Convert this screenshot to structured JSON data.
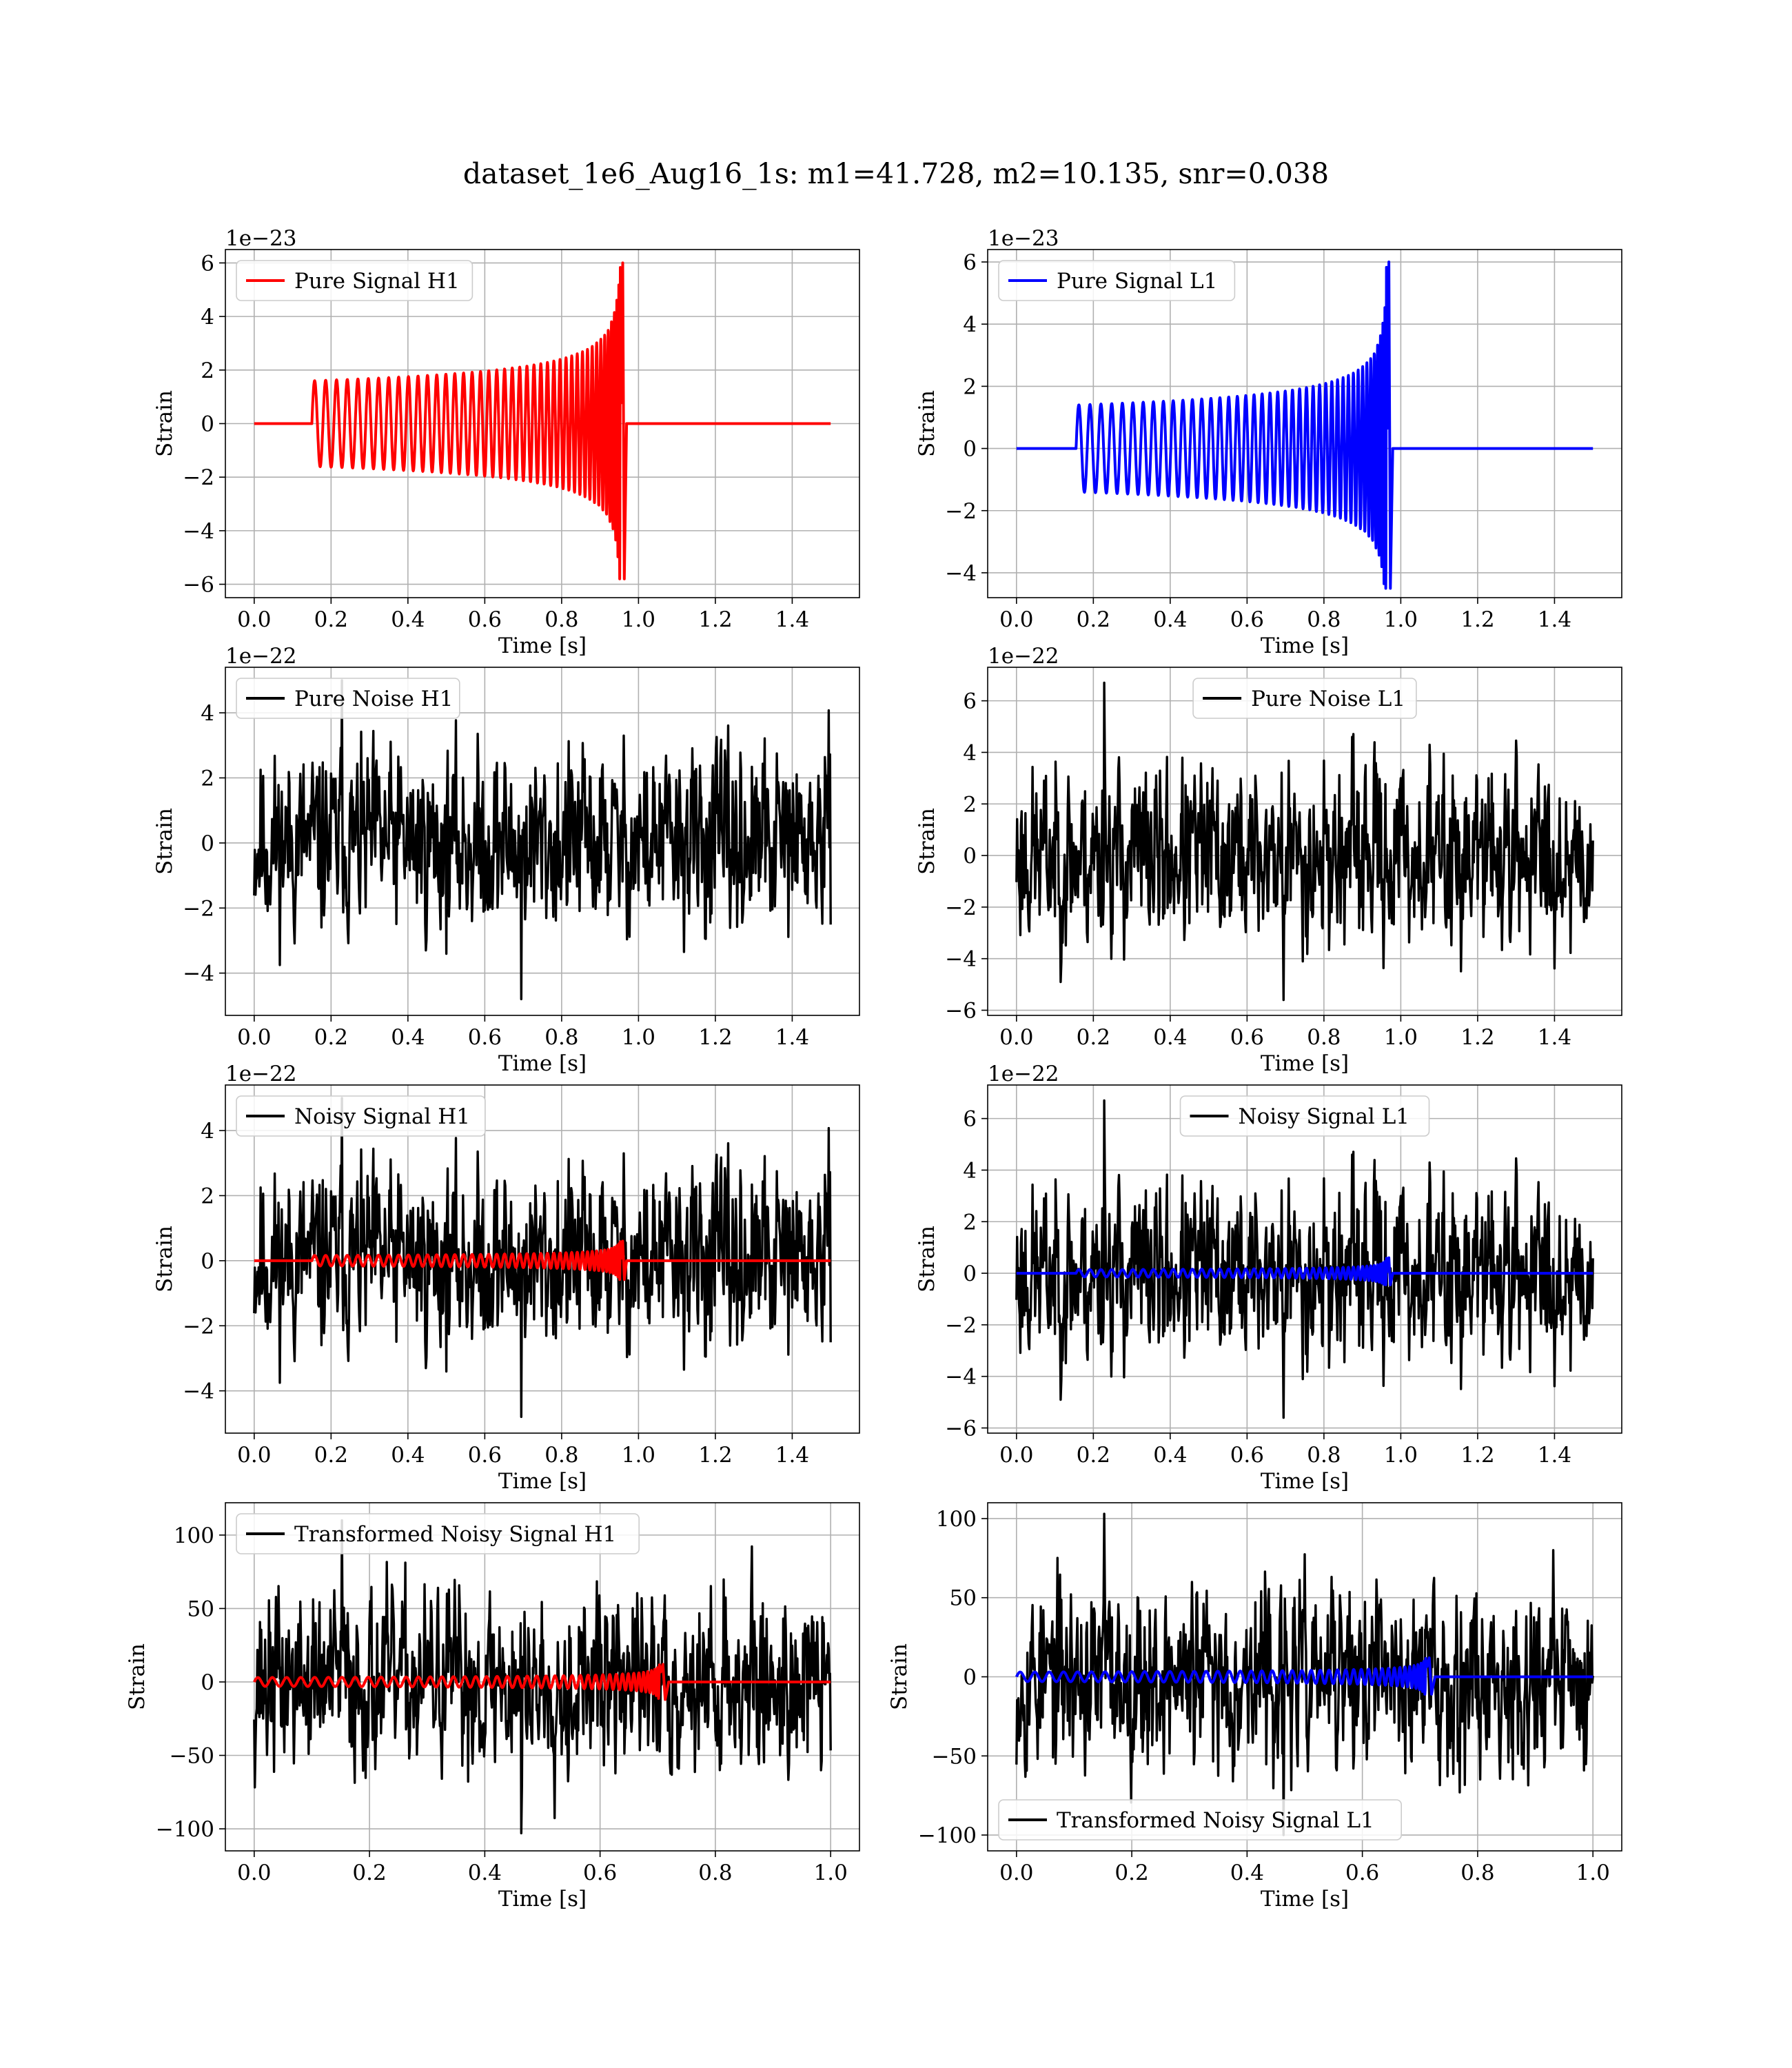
{
  "figure": {
    "title": "dataset_1e6_Aug16_1s: m1=41.728, m2=10.135, snr=0.038"
  },
  "colors": {
    "h1_signal": "#ff0000",
    "l1_signal": "#0000ff",
    "noise": "#000000",
    "grid": "#b0b0b0"
  },
  "chart_data": [
    {
      "type": "line",
      "panel": "pure-signal-h1",
      "offset_label": "1e−23",
      "xlabel": "Time [s]",
      "ylabel": "Strain",
      "xlim": [
        -0.075,
        1.575
      ],
      "ylim": [
        -6.5,
        6.5
      ],
      "xticks": [
        0.0,
        0.2,
        0.4,
        0.6,
        0.8,
        1.0,
        1.2,
        1.4
      ],
      "xtick_labels": [
        "0.0",
        "0.2",
        "0.4",
        "0.6",
        "0.8",
        "1.0",
        "1.2",
        "1.4"
      ],
      "yticks": [
        -6,
        -4,
        -2,
        0,
        2,
        4,
        6
      ],
      "ytick_labels": [
        "−6",
        "−4",
        "−2",
        "0",
        "2",
        "4",
        "6"
      ],
      "grid": true,
      "legend_position": "upper left",
      "series": [
        {
          "name": "Pure Signal H1",
          "color": "#ff0000",
          "kind": "chirp",
          "t_start": 0.15,
          "t_merge": 0.955,
          "t_end": 1.5,
          "amp_start": 1.6,
          "amp_peak": 6.0,
          "amp_neg_peak": -5.8
        }
      ]
    },
    {
      "type": "line",
      "panel": "pure-signal-l1",
      "offset_label": "1e−23",
      "xlabel": "Time [s]",
      "ylabel": "Strain",
      "xlim": [
        -0.075,
        1.575
      ],
      "ylim": [
        -4.8,
        6.4
      ],
      "xticks": [
        0.0,
        0.2,
        0.4,
        0.6,
        0.8,
        1.0,
        1.2,
        1.4
      ],
      "xtick_labels": [
        "0.0",
        "0.2",
        "0.4",
        "0.6",
        "0.8",
        "1.0",
        "1.2",
        "1.4"
      ],
      "yticks": [
        -4,
        -2,
        0,
        2,
        4,
        6
      ],
      "ytick_labels": [
        "−4",
        "−2",
        "0",
        "2",
        "4",
        "6"
      ],
      "grid": true,
      "legend_position": "upper left",
      "series": [
        {
          "name": "Pure Signal L1",
          "color": "#0000ff",
          "kind": "chirp",
          "t_start": 0.155,
          "t_merge": 0.965,
          "t_end": 1.5,
          "amp_start": 1.4,
          "amp_peak": 6.0,
          "amp_neg_peak": -4.5
        }
      ]
    },
    {
      "type": "line",
      "panel": "pure-noise-h1",
      "offset_label": "1e−22",
      "xlabel": "Time [s]",
      "ylabel": "Strain",
      "xlim": [
        -0.075,
        1.575
      ],
      "ylim": [
        -5.3,
        5.4
      ],
      "xticks": [
        0.0,
        0.2,
        0.4,
        0.6,
        0.8,
        1.0,
        1.2,
        1.4
      ],
      "xtick_labels": [
        "0.0",
        "0.2",
        "0.4",
        "0.6",
        "0.8",
        "1.0",
        "1.2",
        "1.4"
      ],
      "yticks": [
        -4,
        -2,
        0,
        2,
        4
      ],
      "ytick_labels": [
        "−4",
        "−2",
        "0",
        "2",
        "4"
      ],
      "grid": true,
      "legend_position": "upper left",
      "series": [
        {
          "name": "Pure Noise H1",
          "color": "#000000",
          "kind": "noise",
          "t_start": 0.0,
          "t_end": 1.5,
          "amp_min": -4.8,
          "amp_max": 5.0,
          "seed": 11
        }
      ]
    },
    {
      "type": "line",
      "panel": "pure-noise-l1",
      "offset_label": "1e−22",
      "xlabel": "Time [s]",
      "ylabel": "Strain",
      "xlim": [
        -0.075,
        1.575
      ],
      "ylim": [
        -6.2,
        7.3
      ],
      "xticks": [
        0.0,
        0.2,
        0.4,
        0.6,
        0.8,
        1.0,
        1.2,
        1.4
      ],
      "xtick_labels": [
        "0.0",
        "0.2",
        "0.4",
        "0.6",
        "0.8",
        "1.0",
        "1.2",
        "1.4"
      ],
      "yticks": [
        -6,
        -4,
        -2,
        0,
        2,
        4,
        6
      ],
      "ytick_labels": [
        "−6",
        "−4",
        "−2",
        "0",
        "2",
        "4",
        "6"
      ],
      "grid": true,
      "legend_position": "upper center",
      "series": [
        {
          "name": "Pure Noise L1",
          "color": "#000000",
          "kind": "noise",
          "t_start": 0.0,
          "t_end": 1.5,
          "amp_min": -5.6,
          "amp_max": 6.7,
          "seed": 23
        }
      ]
    },
    {
      "type": "line",
      "panel": "noisy-signal-h1",
      "offset_label": "1e−22",
      "xlabel": "Time [s]",
      "ylabel": "Strain",
      "xlim": [
        -0.075,
        1.575
      ],
      "ylim": [
        -5.3,
        5.4
      ],
      "xticks": [
        0.0,
        0.2,
        0.4,
        0.6,
        0.8,
        1.0,
        1.2,
        1.4
      ],
      "xtick_labels": [
        "0.0",
        "0.2",
        "0.4",
        "0.6",
        "0.8",
        "1.0",
        "1.2",
        "1.4"
      ],
      "yticks": [
        -4,
        -2,
        0,
        2,
        4
      ],
      "ytick_labels": [
        "−4",
        "−2",
        "0",
        "2",
        "4"
      ],
      "grid": true,
      "legend_position": "upper left",
      "series": [
        {
          "name": "Noisy Signal H1",
          "color": "#000000",
          "kind": "noise",
          "t_start": 0.0,
          "t_end": 1.5,
          "amp_min": -4.8,
          "amp_max": 5.0,
          "seed": 11
        },
        {
          "name": "",
          "color": "#ff0000",
          "kind": "chirp",
          "t_start": 0.15,
          "t_merge": 0.955,
          "t_end": 1.5,
          "amp_start": 0.16,
          "amp_peak": 0.6,
          "amp_neg_peak": -0.58
        }
      ]
    },
    {
      "type": "line",
      "panel": "noisy-signal-l1",
      "offset_label": "1e−22",
      "xlabel": "Time [s]",
      "ylabel": "Strain",
      "xlim": [
        -0.075,
        1.575
      ],
      "ylim": [
        -6.2,
        7.3
      ],
      "xticks": [
        0.0,
        0.2,
        0.4,
        0.6,
        0.8,
        1.0,
        1.2,
        1.4
      ],
      "xtick_labels": [
        "0.0",
        "0.2",
        "0.4",
        "0.6",
        "0.8",
        "1.0",
        "1.2",
        "1.4"
      ],
      "yticks": [
        -6,
        -4,
        -2,
        0,
        2,
        4,
        6
      ],
      "ytick_labels": [
        "−6",
        "−4",
        "−2",
        "0",
        "2",
        "4",
        "6"
      ],
      "grid": true,
      "legend_position": "upper center",
      "series": [
        {
          "name": "Noisy Signal L1",
          "color": "#000000",
          "kind": "noise",
          "t_start": 0.0,
          "t_end": 1.5,
          "amp_min": -5.6,
          "amp_max": 6.7,
          "seed": 23
        },
        {
          "name": "",
          "color": "#0000ff",
          "kind": "chirp",
          "t_start": 0.155,
          "t_merge": 0.965,
          "t_end": 1.5,
          "amp_start": 0.14,
          "amp_peak": 0.6,
          "amp_neg_peak": -0.45
        }
      ]
    },
    {
      "type": "line",
      "panel": "transformed-noisy-signal-h1",
      "offset_label": "",
      "xlabel": "Time [s]",
      "ylabel": "Strain",
      "xlim": [
        -0.05,
        1.05
      ],
      "ylim": [
        -115,
        122
      ],
      "xticks": [
        0.0,
        0.2,
        0.4,
        0.6,
        0.8,
        1.0
      ],
      "xtick_labels": [
        "0.0",
        "0.2",
        "0.4",
        "0.6",
        "0.8",
        "1.0"
      ],
      "yticks": [
        -100,
        -50,
        0,
        50,
        100
      ],
      "ytick_labels": [
        "−100",
        "−50",
        "0",
        "50",
        "100"
      ],
      "grid": true,
      "legend_position": "upper left",
      "series": [
        {
          "name": "Transformed Noisy Signal H1",
          "color": "#000000",
          "kind": "noise",
          "t_start": 0.0,
          "t_end": 1.0,
          "amp_min": -103,
          "amp_max": 110,
          "seed": 37
        },
        {
          "name": "",
          "color": "#ff0000",
          "kind": "chirp",
          "t_start": 0.0,
          "t_merge": 0.705,
          "t_end": 1.0,
          "amp_start": 3,
          "amp_peak": 12,
          "amp_neg_peak": -12
        }
      ]
    },
    {
      "type": "line",
      "panel": "transformed-noisy-signal-l1",
      "offset_label": "",
      "xlabel": "Time [s]",
      "ylabel": "Strain",
      "xlim": [
        -0.05,
        1.05
      ],
      "ylim": [
        -110,
        110
      ],
      "xticks": [
        0.0,
        0.2,
        0.4,
        0.6,
        0.8,
        1.0
      ],
      "xtick_labels": [
        "0.0",
        "0.2",
        "0.4",
        "0.6",
        "0.8",
        "1.0"
      ],
      "yticks": [
        -100,
        -50,
        0,
        50,
        100
      ],
      "ytick_labels": [
        "−100",
        "−50",
        "0",
        "50",
        "100"
      ],
      "grid": true,
      "legend_position": "lower left",
      "series": [
        {
          "name": "Transformed Noisy Signal L1",
          "color": "#000000",
          "kind": "noise",
          "t_start": 0.0,
          "t_end": 1.0,
          "amp_min": -100,
          "amp_max": 103,
          "seed": 53
        },
        {
          "name": "",
          "color": "#0000ff",
          "kind": "chirp",
          "t_start": 0.0,
          "t_merge": 0.712,
          "t_end": 1.0,
          "amp_start": 3,
          "amp_peak": 12,
          "amp_neg_peak": -11
        }
      ]
    }
  ]
}
